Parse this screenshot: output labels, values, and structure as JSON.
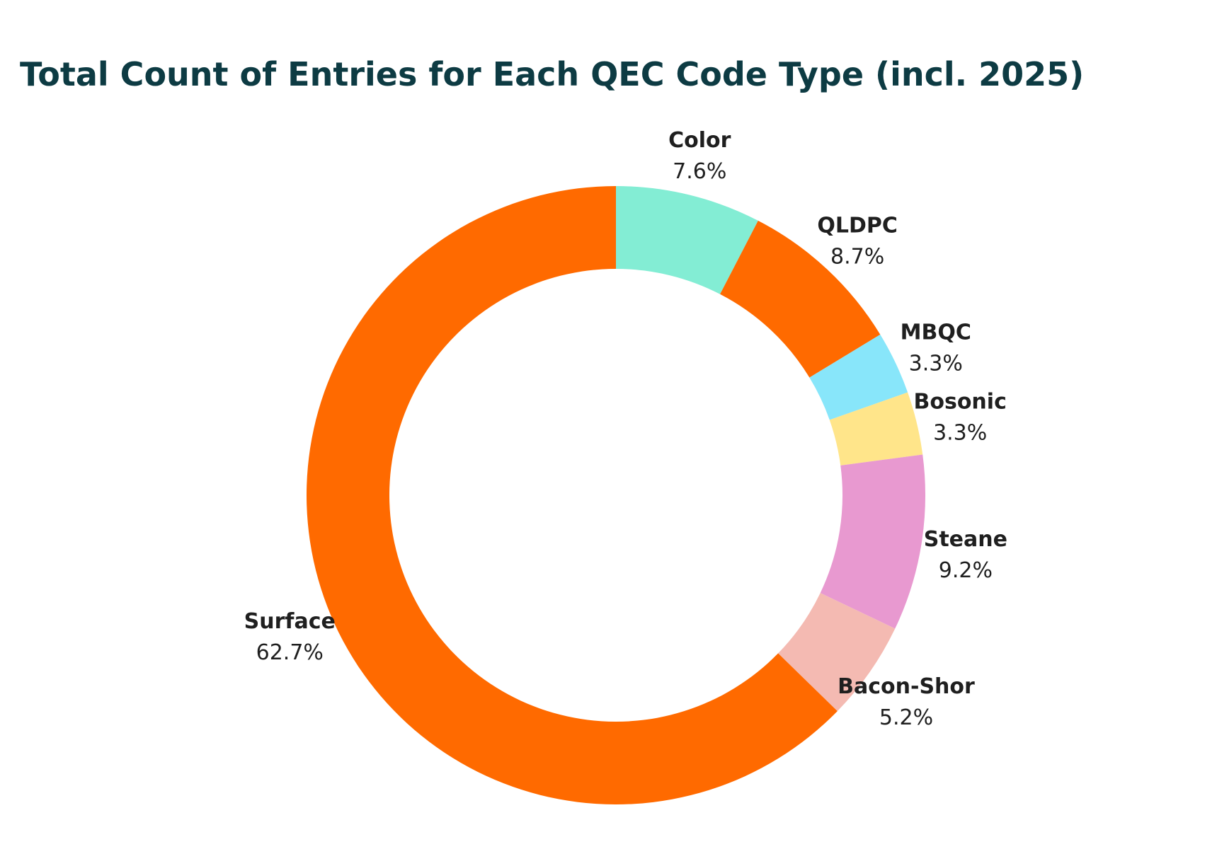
{
  "chart_data": {
    "type": "pie",
    "variant": "donut",
    "title": "Total Count of Entries for Each QEC Code Type (incl. 2025)",
    "slices": [
      {
        "label": "Color",
        "value": 7.6,
        "value_label": "7.6%",
        "color": "#83edd4"
      },
      {
        "label": "QLDPC",
        "value": 8.7,
        "value_label": "8.7%",
        "color": "#ff6a00"
      },
      {
        "label": "MBQC",
        "value": 3.3,
        "value_label": "3.3%",
        "color": "#88e6fa"
      },
      {
        "label": "Bosonic",
        "value": 3.3,
        "value_label": "3.3%",
        "color": "#ffe58a"
      },
      {
        "label": "Steane",
        "value": 9.2,
        "value_label": "9.2%",
        "color": "#e899d0"
      },
      {
        "label": "Bacon-Shor",
        "value": 5.2,
        "value_label": "5.2%",
        "color": "#f4bab2"
      },
      {
        "label": "Surface",
        "value": 62.7,
        "value_label": "62.7%",
        "color": "#ff6a00"
      }
    ],
    "start_angle": "12 o'clock",
    "direction": "clockwise",
    "legend": "none"
  },
  "colors": {
    "title": "#0d3b43",
    "label": "#1f1f1f",
    "background": "#ffffff"
  }
}
